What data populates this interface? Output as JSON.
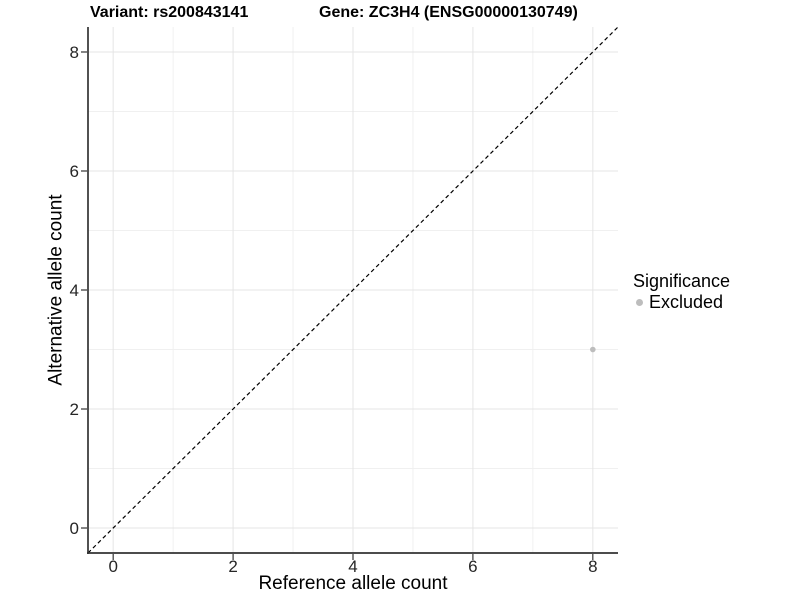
{
  "header": {
    "variant_title": "Variant: rs200843141",
    "gene_title": "Gene: ZC3H4 (ENSG00000130749)"
  },
  "chart_data": {
    "type": "scatter",
    "title": "Variant: rs200843141    Gene: ZC3H4 (ENSG00000130749)",
    "xlabel": "Reference allele count",
    "ylabel": "Alternative allele count",
    "xlim": [
      -0.42,
      8.42
    ],
    "ylim": [
      -0.42,
      8.42
    ],
    "xticks": [
      0,
      2,
      4,
      6,
      8
    ],
    "yticks": [
      0,
      2,
      4,
      6,
      8
    ],
    "xminor": [
      1,
      3,
      5,
      7
    ],
    "yminor": [
      1,
      3,
      5,
      7
    ],
    "grid": true,
    "identity_line": {
      "slope": 1,
      "intercept": 0,
      "style": "dashed",
      "color": "#000000"
    },
    "series": [
      {
        "name": "Excluded",
        "color": "#bdbdbd",
        "points": [
          [
            8,
            3
          ]
        ]
      }
    ],
    "legend": {
      "title": "Significance",
      "position": "right",
      "entries": [
        {
          "label": "Excluded",
          "color": "#bdbdbd"
        }
      ]
    },
    "colors": {
      "background": "#ffffff",
      "grid_major": "#e5e5e5",
      "grid_minor": "#f0f0f0",
      "axis_line": "#333333",
      "tick_mark": "#333333",
      "tick_label": "#262626",
      "point": "#bdbdbd"
    }
  }
}
